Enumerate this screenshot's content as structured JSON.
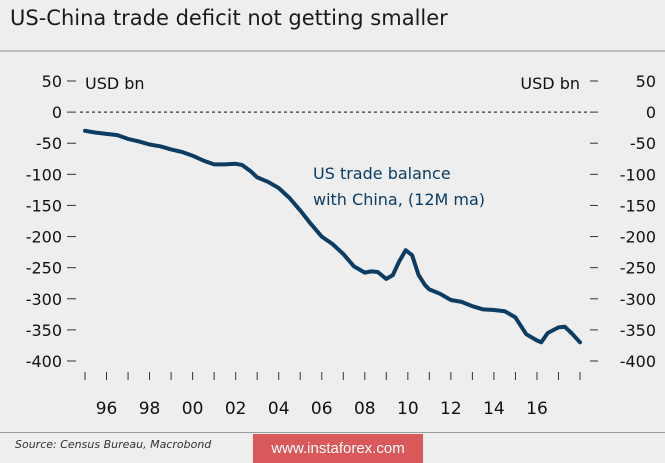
{
  "title": "US-China trade deficit not getting smaller",
  "source": "Source: Census Bureau, Macrobond",
  "watermark": "www.instaforex.com",
  "chart_data": {
    "type": "line",
    "title": "US-China trade deficit not getting smaller",
    "ylabel_left": "USD bn",
    "ylabel_right": "USD bn",
    "ylim": [
      -400,
      50
    ],
    "yticks": [
      50,
      0,
      -50,
      -100,
      -150,
      -200,
      -250,
      -300,
      -350,
      -400
    ],
    "ytick_labels": [
      "50",
      "0",
      "-50",
      "-100",
      "-150",
      "-200",
      "-250",
      "-300",
      "-350",
      "-400"
    ],
    "xlim": [
      1995,
      2018
    ],
    "xticks": [
      1996,
      1998,
      2000,
      2002,
      2004,
      2006,
      2008,
      2010,
      2012,
      2014,
      2016
    ],
    "xtick_labels": [
      "96",
      "98",
      "00",
      "02",
      "04",
      "06",
      "08",
      "10",
      "12",
      "14",
      "16"
    ],
    "zero_line": "dashed",
    "grid": false,
    "line_color": "#0b3c63",
    "annotation": [
      "US trade balance",
      "with China, (12M ma)"
    ],
    "series": [
      {
        "name": "US trade balance with China, (12M ma)",
        "x": [
          1995.0,
          1995.5,
          1996.0,
          1996.5,
          1997.0,
          1997.5,
          1998.0,
          1998.5,
          1999.0,
          1999.5,
          2000.0,
          2000.5,
          2001.0,
          2001.5,
          2002.0,
          2002.3,
          2002.7,
          2003.0,
          2003.5,
          2004.0,
          2004.5,
          2005.0,
          2005.5,
          2006.0,
          2006.5,
          2007.0,
          2007.5,
          2008.0,
          2008.3,
          2008.6,
          2009.0,
          2009.3,
          2009.6,
          2009.9,
          2010.2,
          2010.5,
          2010.8,
          2011.0,
          2011.5,
          2012.0,
          2012.5,
          2013.0,
          2013.5,
          2014.0,
          2014.5,
          2015.0,
          2015.5,
          2016.0,
          2016.2,
          2016.5,
          2017.0,
          2017.3,
          2017.6,
          2018.0
        ],
        "values": [
          -30,
          -33,
          -35,
          -37,
          -43,
          -47,
          -52,
          -55,
          -60,
          -64,
          -70,
          -78,
          -84,
          -84,
          -83,
          -85,
          -95,
          -105,
          -112,
          -122,
          -138,
          -158,
          -180,
          -200,
          -212,
          -228,
          -248,
          -258,
          -256,
          -257,
          -268,
          -262,
          -240,
          -222,
          -230,
          -262,
          -278,
          -285,
          -292,
          -302,
          -305,
          -312,
          -317,
          -318,
          -320,
          -330,
          -357,
          -367,
          -370,
          -355,
          -346,
          -345,
          -355,
          -370
        ]
      }
    ]
  }
}
